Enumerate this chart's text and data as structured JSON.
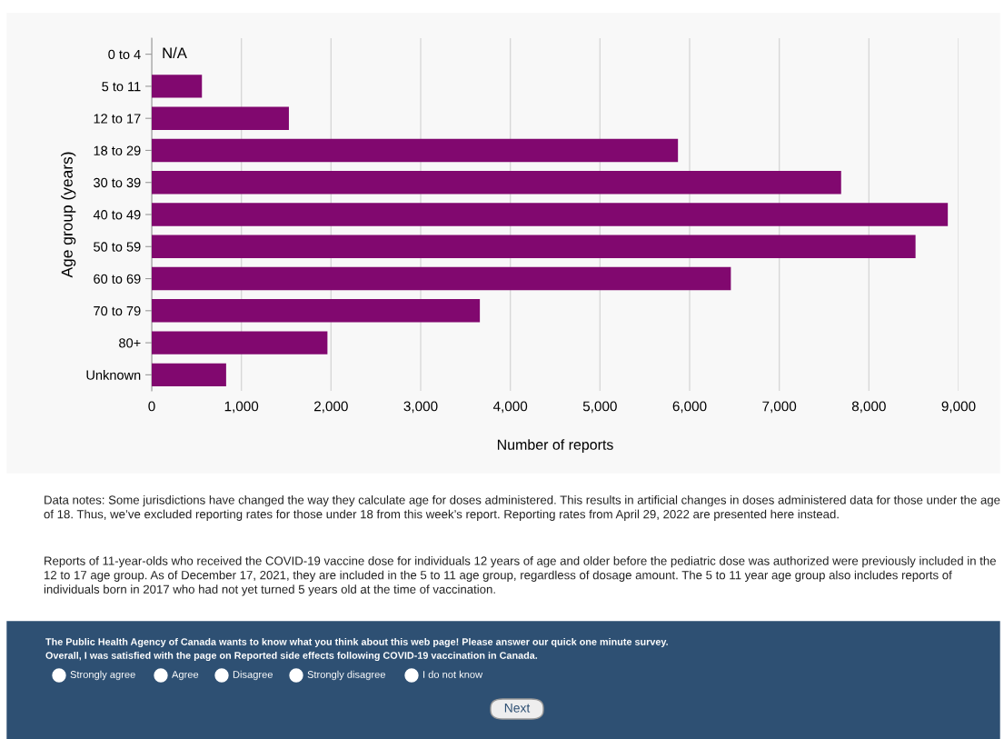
{
  "chart_data": {
    "type": "bar",
    "orientation": "horizontal",
    "ylabel": "Age group (years)",
    "xlabel": "Number of reports",
    "categories": [
      "0 to 4",
      "5 to 11",
      "12 to 17",
      "18 to 29",
      "30 to 39",
      "40 to 49",
      "50 to 59",
      "60 to 69",
      "70 to 79",
      "80+",
      "Unknown"
    ],
    "values": [
      null,
      560,
      1530,
      5870,
      7690,
      8880,
      8520,
      6460,
      3660,
      1960,
      830
    ],
    "color": "#81086f",
    "xlim": [
      0,
      9000
    ],
    "xticks": [
      0,
      {
        "value": 1000,
        "label": "1,000"
      },
      {
        "value": 2000,
        "label": "2,000"
      },
      {
        "value": 3000,
        "label": "3,000"
      },
      {
        "value": 4000,
        "label": "4,000"
      },
      {
        "value": 5000,
        "label": "5,000"
      },
      {
        "value": 6000,
        "label": "6,000"
      },
      {
        "value": 7000,
        "label": "7,000"
      },
      {
        "value": 8000,
        "label": "8,000"
      },
      {
        "value": 9000,
        "label": "9,000"
      }
    ],
    "grid": "x",
    "annotations": [
      "N/A",
      "Data notes: Some jurisdictions have changed the way they calculate age for doses administered. This results in artificial changes in doses administered data for those under the age of 18. Thus, we’ve excluded reporting rates for those under 18 from this week’s report. Reporting rates from April 29, 2022 are presented here instead.",
      "Reports of 11-year-olds who received the COVID-19 vaccine dose for individuals 12 years of age and older before the pediatric dose was authorized were previously included in the 12 to 17 age group. As of December 17, 2021, they are included in the 5 to 11 age group, regardless of dosage amount. The 5 to 11 year age group also includes reports of individuals born in 2017 who had not yet turned 5 years old at the time of vaccination.",
      "The Public Health Agency of Canada wants to know what you think about this web page! Please answer our quick one minute survey.",
      "Overall, I was satisfied with the page on Reported side effects following COVID-19 vaccination in Canada.",
      "Strongly agree",
      "Agree",
      "Disagree",
      "Strongly disagree",
      "I do not know",
      "Next"
    ]
  }
}
